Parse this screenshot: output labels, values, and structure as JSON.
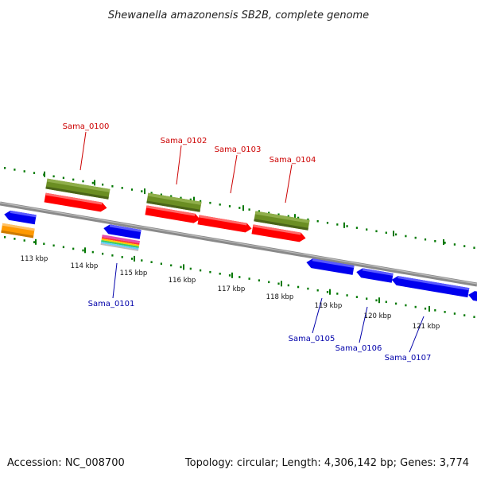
{
  "title": "Shewanella amazonensis SB2B, complete genome",
  "footer": {
    "accession": "Accession: NC_008700",
    "summary": "Topology: circular; Length: 4,306,142 bp; Genes: 3,774"
  },
  "tick_labels": [
    "113 kbp",
    "114 kbp",
    "115 kbp",
    "116 kbp",
    "117 kbp",
    "118 kbp",
    "119 kbp",
    "120 kbp",
    "121 kbp"
  ],
  "gene_labels": {
    "top": [
      "Sama_0100",
      "Sama_0102",
      "Sama_0103",
      "Sama_0104"
    ],
    "bottom": [
      "Sama_0101",
      "Sama_0105",
      "Sama_0106",
      "Sama_0107"
    ]
  },
  "colors": {
    "forward_gene": "#ff0000",
    "reverse_gene": "#0000ee",
    "cds_feature": "#6b8e23",
    "orange_feature": "#ff9900",
    "tick_marks": "#007700",
    "backbone": "#888888"
  }
}
